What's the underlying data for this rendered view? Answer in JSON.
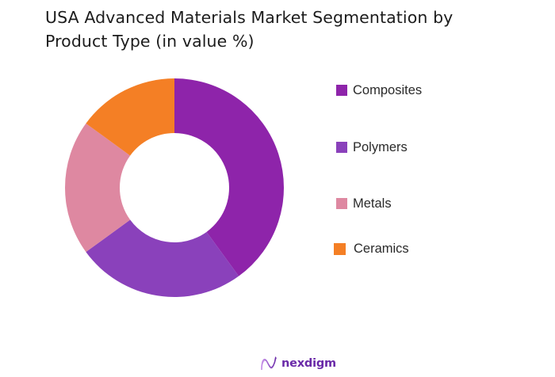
{
  "title_lines": [
    "USA Advanced Materials Market Segmentation by",
    "Product Type (in value %)"
  ],
  "chart_data": {
    "type": "pie",
    "subtype": "donut",
    "title": "USA Advanced Materials Market Segmentation by Product Type (in value %)",
    "categories": [
      "Composites",
      "Polymers",
      "Metals",
      "Ceramics"
    ],
    "values": [
      40,
      25,
      20,
      15
    ],
    "colors": [
      "#8E24AA",
      "#8A41BB",
      "#DE88A1",
      "#F47F25"
    ],
    "start_angle_deg": 0,
    "direction": "clockwise",
    "legend_position": "right",
    "data_labels": false
  },
  "legend": [
    {
      "label": "Composites",
      "color": "#8E24AA"
    },
    {
      "label": "Polymers",
      "color": "#8A41BB"
    },
    {
      "label": "Metals",
      "color": "#DE88A1"
    },
    {
      "label": "Ceramics",
      "color": "#F47F25"
    }
  ],
  "brand": {
    "name": "nexdigm",
    "color": "#6A2AA8"
  }
}
